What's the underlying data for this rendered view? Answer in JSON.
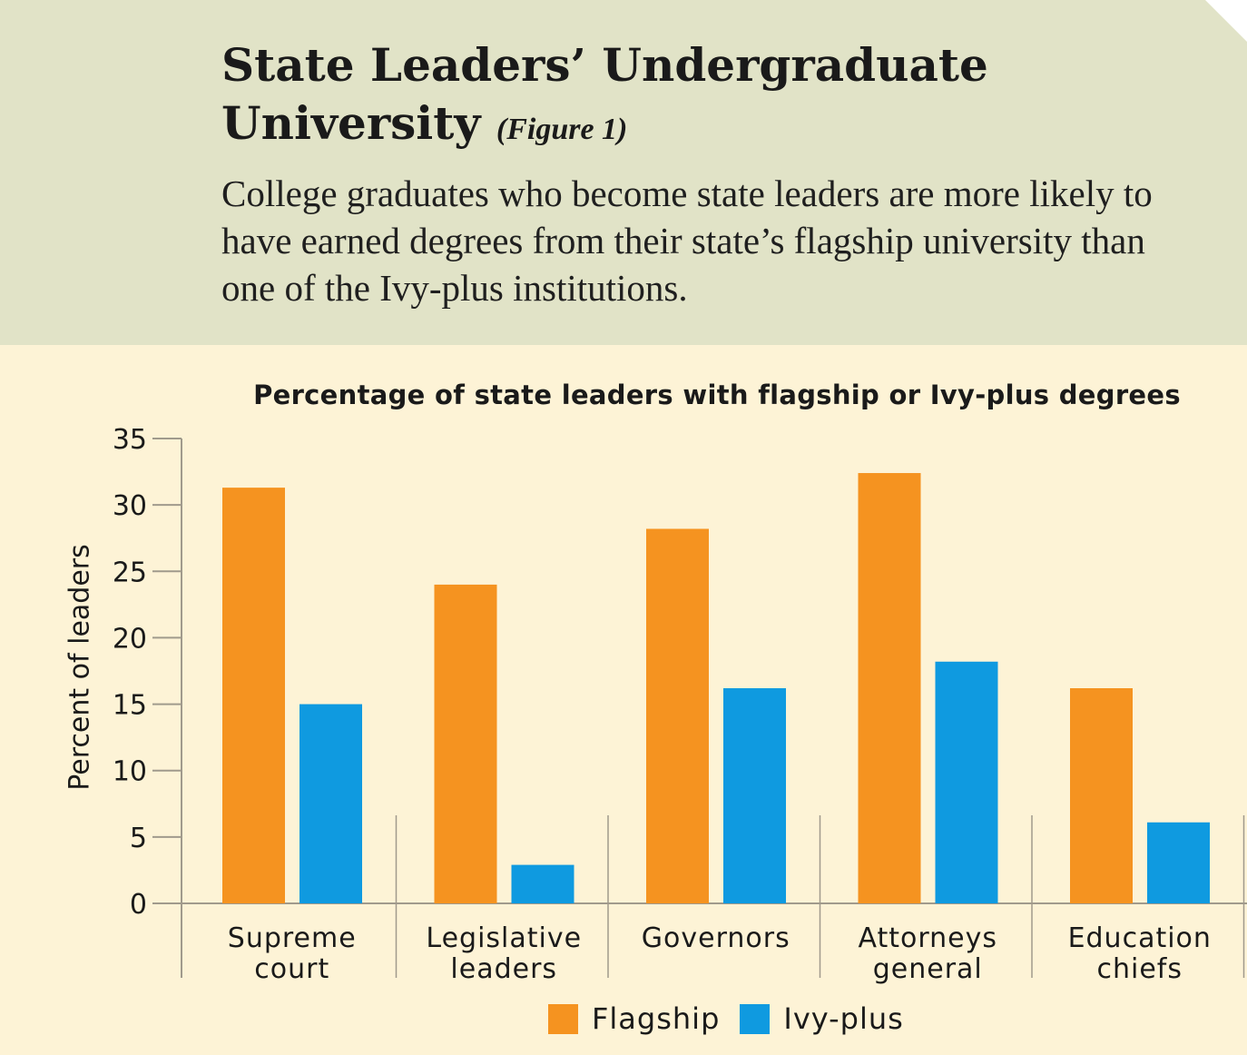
{
  "header": {
    "title_main": "State Leaders’ Undergraduate University",
    "title_figure": "(Figure 1)",
    "subtitle": "College graduates who become state leaders are more likely to have earned degrees from their state’s flagship university than one of the Ivy-plus institutions."
  },
  "colors": {
    "header_bg": "#e1e3c7",
    "chart_bg": "#fdf3d6",
    "flagship": "#f59320",
    "ivy_plus": "#0f9ae0",
    "axis": "#a09a8c"
  },
  "chart_data": {
    "type": "bar",
    "title": "Percentage of state leaders with flagship or Ivy-plus degrees",
    "ylabel": "Percent of leaders",
    "xlabel": "",
    "ylim": [
      0,
      35
    ],
    "yticks": [
      0,
      5,
      10,
      15,
      20,
      25,
      30,
      35
    ],
    "categories": [
      [
        "Supreme",
        "court"
      ],
      [
        "Legislative",
        "leaders"
      ],
      [
        "Governors"
      ],
      [
        "Attorneys",
        "general"
      ],
      [
        "Education",
        "chiefs"
      ]
    ],
    "series": [
      {
        "name": "Flagship",
        "values": [
          31.3,
          24,
          28.2,
          32.4,
          16.2
        ]
      },
      {
        "name": "Ivy-plus",
        "values": [
          15,
          2.9,
          16.2,
          18.2,
          6.1
        ]
      }
    ],
    "legend": "bottom-center",
    "grid": false
  }
}
